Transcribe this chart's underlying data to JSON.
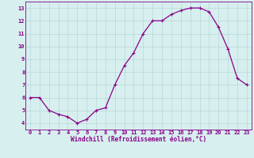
{
  "x": [
    0,
    1,
    2,
    3,
    4,
    5,
    6,
    7,
    8,
    9,
    10,
    11,
    12,
    13,
    14,
    15,
    16,
    17,
    18,
    19,
    20,
    21,
    22,
    23
  ],
  "y": [
    6,
    6,
    5,
    4.7,
    4.5,
    4.0,
    4.3,
    5.0,
    5.2,
    7.0,
    8.5,
    9.5,
    11.0,
    12.0,
    12.0,
    12.5,
    12.8,
    13.0,
    13.0,
    12.7,
    11.5,
    9.8,
    7.5,
    7.0
  ],
  "line_color": "#880088",
  "marker": "+",
  "marker_size": 3,
  "marker_linewidth": 0.8,
  "linewidth": 0.9,
  "bg_color": "#d7efef",
  "grid_color": "#b8d8d8",
  "xlabel": "Windchill (Refroidissement éolien,°C)",
  "ylim": [
    3.5,
    13.5
  ],
  "xlim": [
    -0.5,
    23.5
  ],
  "yticks": [
    4,
    5,
    6,
    7,
    8,
    9,
    10,
    11,
    12,
    13
  ],
  "xtick_labels": [
    "0",
    "1",
    "2",
    "3",
    "4",
    "5",
    "6",
    "7",
    "8",
    "9",
    "10",
    "11",
    "12",
    "13",
    "14",
    "15",
    "16",
    "17",
    "18",
    "19",
    "20",
    "21",
    "22",
    "23"
  ],
  "tick_fontsize": 5,
  "xlabel_fontsize": 5.5
}
